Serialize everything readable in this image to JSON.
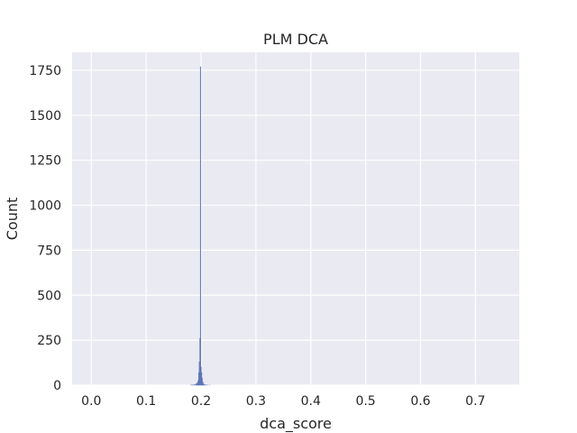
{
  "chart_data": {
    "type": "bar",
    "title": "PLM DCA",
    "xlabel": "dca_score",
    "ylabel": "Count",
    "xlim": [
      -0.035,
      0.78
    ],
    "ylim": [
      0,
      1850
    ],
    "xticks": [
      0.0,
      0.1,
      0.2,
      0.3,
      0.4,
      0.5,
      0.6,
      0.7
    ],
    "xtick_labels": [
      "0.0",
      "0.1",
      "0.2",
      "0.3",
      "0.4",
      "0.5",
      "0.6",
      "0.7"
    ],
    "yticks": [
      0,
      250,
      500,
      750,
      1000,
      1250,
      1500,
      1750
    ],
    "ytick_labels": [
      "0",
      "250",
      "500",
      "750",
      "1000",
      "1250",
      "1500",
      "1750"
    ],
    "grid": true,
    "legend": "none",
    "bin_width": 0.001,
    "bins": [
      {
        "x": 0.182,
        "count": 2
      },
      {
        "x": 0.185,
        "count": 3
      },
      {
        "x": 0.188,
        "count": 4
      },
      {
        "x": 0.19,
        "count": 6
      },
      {
        "x": 0.192,
        "count": 8
      },
      {
        "x": 0.193,
        "count": 12
      },
      {
        "x": 0.194,
        "count": 18
      },
      {
        "x": 0.195,
        "count": 28
      },
      {
        "x": 0.196,
        "count": 70
      },
      {
        "x": 0.197,
        "count": 130
      },
      {
        "x": 0.198,
        "count": 260
      },
      {
        "x": 0.199,
        "count": 1770
      },
      {
        "x": 0.2,
        "count": 100
      },
      {
        "x": 0.201,
        "count": 70
      },
      {
        "x": 0.202,
        "count": 40
      },
      {
        "x": 0.203,
        "count": 20
      },
      {
        "x": 0.204,
        "count": 10
      },
      {
        "x": 0.206,
        "count": 5
      },
      {
        "x": 0.208,
        "count": 3
      },
      {
        "x": 0.211,
        "count": 2
      },
      {
        "x": 0.215,
        "count": 1
      }
    ],
    "colors": {
      "background": "#eaeaf2",
      "grid": "#ffffff",
      "bar_fill": "#8797cc",
      "bar_edge": "#4c6aae",
      "text": "#262626"
    }
  }
}
